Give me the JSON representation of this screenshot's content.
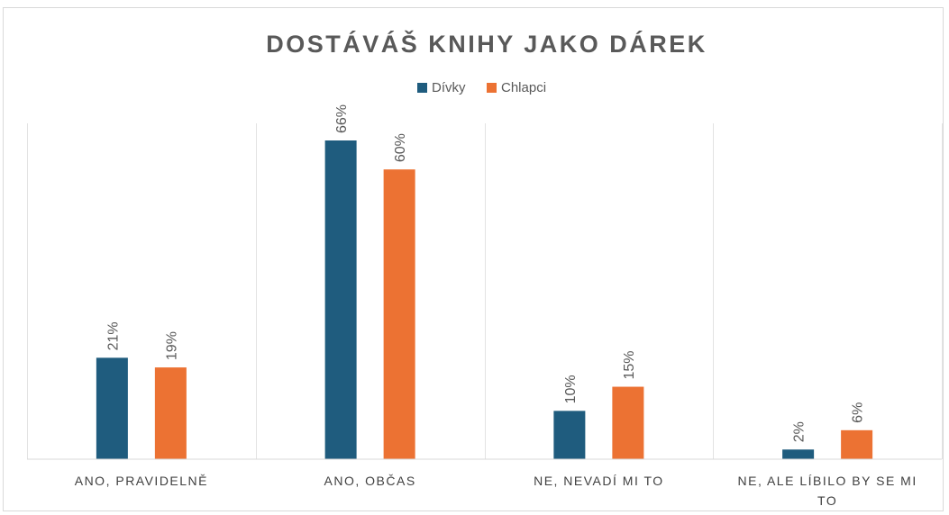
{
  "chart_data": {
    "type": "bar",
    "title": "DOSTÁVÁŠ KNIHY JAKO DÁREK",
    "xlabel": "",
    "ylabel": "",
    "categories": [
      "ANO, PRAVIDELNĚ",
      "ANO, OBČAS",
      "NE, NEVADÍ MI TO",
      "NE, ALE LÍBILO BY SE MI TO"
    ],
    "category_lines": [
      [
        "ANO, PRAVIDELNĚ"
      ],
      [
        "ANO, OBČAS"
      ],
      [
        "NE, NEVADÍ MI TO"
      ],
      [
        "NE, ALE LÍBILO BY SE MI",
        "TO"
      ]
    ],
    "series": [
      {
        "name": "Dívky",
        "values": [
          21,
          66,
          10,
          2
        ],
        "labels": [
          "21%",
          "66%",
          "10%",
          "2%"
        ],
        "color": "#1F5C7E"
      },
      {
        "name": "Chlapci",
        "values": [
          19,
          60,
          15,
          6
        ],
        "labels": [
          "19%",
          "60%",
          "15%",
          "6%"
        ],
        "color": "#EC7233"
      }
    ],
    "ylim": [
      0,
      70
    ],
    "grid": false,
    "category_separators": true,
    "legend_position": "top-center",
    "data_labels": "vertical, above bars"
  }
}
